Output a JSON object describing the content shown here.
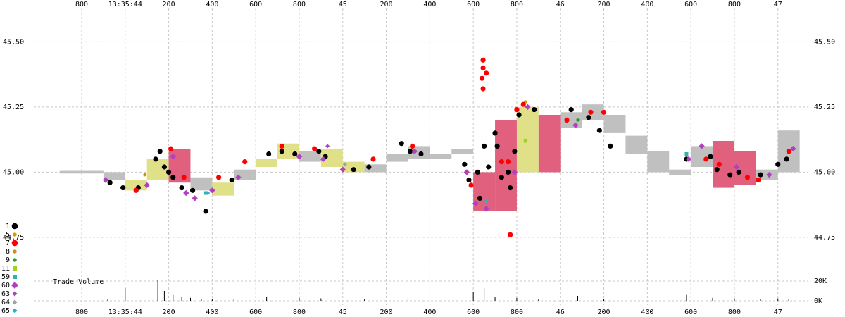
{
  "chart_data": {
    "type": "scatter",
    "xlim": [
      43.58,
      47.14
    ],
    "xticks": [
      {
        "value": 43.8,
        "label": "800"
      },
      {
        "value": 44,
        "label": "13:35:44"
      },
      {
        "value": 44.2,
        "label": "200"
      },
      {
        "value": 44.4,
        "label": "400"
      },
      {
        "value": 44.6,
        "label": "600"
      },
      {
        "value": 44.8,
        "label": "800"
      },
      45,
      {
        "value": 45.2,
        "label": "200"
      },
      {
        "value": 45.4,
        "label": "400"
      },
      {
        "value": 45.6,
        "label": "600"
      },
      {
        "value": 45.8,
        "label": "800"
      },
      46,
      {
        "value": 46.2,
        "label": "200"
      },
      {
        "value": 46.4,
        "label": "400"
      },
      {
        "value": 46.6,
        "label": "600"
      },
      {
        "value": 46.8,
        "label": "800"
      },
      47
    ],
    "ylim": [
      44.62,
      45.62
    ],
    "yticks": [
      44.75,
      {
        "value": 45,
        "label": "45.00"
      },
      45.25,
      {
        "value": 45.5,
        "label": "45.50"
      }
    ],
    "grid": true,
    "bands": {
      "x": [
        43.7,
        43.8,
        43.9,
        44.0,
        44.1,
        44.2,
        44.3,
        44.4,
        44.5,
        44.6,
        44.7,
        44.8,
        44.9,
        45.0,
        45.1,
        45.2,
        45.3,
        45.4,
        45.5,
        45.6,
        45.7,
        45.8,
        45.9,
        46.0,
        46.1,
        46.2,
        46.3,
        46.4,
        46.5,
        46.6,
        46.7,
        46.8,
        46.9,
        47.0
      ],
      "low": [
        44.995,
        44.995,
        44.97,
        44.93,
        44.97,
        44.96,
        44.93,
        44.91,
        44.97,
        45.02,
        45.05,
        45.04,
        45.02,
        45.0,
        45.0,
        45.04,
        45.05,
        45.05,
        45.07,
        44.85,
        44.85,
        45.0,
        45.0,
        45.17,
        45.2,
        45.15,
        45.07,
        45.0,
        44.99,
        45.02,
        44.94,
        44.95,
        44.97,
        45.0
      ],
      "high": [
        45.005,
        45.005,
        45.0,
        44.97,
        45.05,
        45.09,
        44.98,
        44.96,
        45.01,
        45.05,
        45.11,
        45.08,
        45.09,
        45.04,
        45.03,
        45.07,
        45.1,
        45.07,
        45.09,
        45.0,
        45.2,
        45.25,
        45.22,
        45.23,
        45.26,
        45.22,
        45.14,
        45.08,
        45.01,
        45.1,
        45.12,
        45.08,
        45.01,
        45.16
      ],
      "colors": [
        "#c0c0c0",
        "#c0c0c0",
        "#c0c0c0",
        "#e0e088",
        "#e0e088",
        "#e0607e",
        "#c0c0c0",
        "#e0e088",
        "#c0c0c0",
        "#e0e088",
        "#e0e088",
        "#c0c0c0",
        "#e0e088",
        "#e0e088",
        "#c0c0c0",
        "#c0c0c0",
        "#c0c0c0",
        "#c0c0c0",
        "#c0c0c0",
        "#e0607e",
        "#e0607e",
        "#e0e088",
        "#e0607e",
        "#c0c0c0",
        "#c0c0c0",
        "#c0c0c0",
        "#c0c0c0",
        "#c0c0c0",
        "#c0c0c0",
        "#c0c0c0",
        "#e0607e",
        "#e0607e",
        "#c0c0c0",
        "#c0c0c0"
      ]
    },
    "series": [
      {
        "name": "1",
        "color": "#000000",
        "marker": "circle",
        "x": [
          43.93,
          43.99,
          44.06,
          44.14,
          44.16,
          44.18,
          44.2,
          44.22,
          44.26,
          44.31,
          44.37,
          44.49,
          44.66,
          44.72,
          44.78,
          44.89,
          44.92,
          45.05,
          45.12,
          45.27,
          45.31,
          45.36,
          45.56,
          45.58,
          45.62,
          45.63,
          45.65,
          45.67,
          45.7,
          45.71,
          45.73,
          45.76,
          45.77,
          45.79,
          45.81,
          45.88,
          46.05,
          46.13,
          46.18,
          46.23,
          46.58,
          46.69,
          46.72,
          46.78,
          46.82,
          46.92,
          47.0,
          47.04
        ],
        "y": [
          44.96,
          44.94,
          44.94,
          45.05,
          45.08,
          45.02,
          45.0,
          44.98,
          44.94,
          44.93,
          44.85,
          44.97,
          45.07,
          45.08,
          45.07,
          45.08,
          45.06,
          45.01,
          45.02,
          45.11,
          45.08,
          45.07,
          45.03,
          44.97,
          45.0,
          44.9,
          45.1,
          45.02,
          45.15,
          45.1,
          44.98,
          45.0,
          44.94,
          45.08,
          45.22,
          45.24,
          45.24,
          45.21,
          45.16,
          45.1,
          45.05,
          45.06,
          45.01,
          44.99,
          45.0,
          44.99,
          45.03,
          45.05
        ]
      },
      {
        "name": "5",
        "color": "#d4a000",
        "marker": "dot",
        "x": [
          45.84
        ],
        "y": [
          45.27
        ]
      },
      {
        "name": "7",
        "color": "#ff0000",
        "marker": "circle",
        "x": [
          44.05,
          44.21,
          44.27,
          44.43,
          44.55,
          44.72,
          44.87,
          45.14,
          45.32,
          45.59,
          45.64,
          45.645,
          45.645,
          45.645,
          45.66,
          45.73,
          45.76,
          45.77,
          45.8,
          45.83,
          46.03,
          46.14,
          46.2,
          46.67,
          46.73,
          46.86,
          46.91,
          47.05
        ],
        "y": [
          44.93,
          45.09,
          44.98,
          44.98,
          45.04,
          45.1,
          45.09,
          45.05,
          45.1,
          44.95,
          45.36,
          45.43,
          45.32,
          45.4,
          45.38,
          45.04,
          45.04,
          44.76,
          45.24,
          45.26,
          45.2,
          45.23,
          45.23,
          45.05,
          45.03,
          44.98,
          44.97,
          45.08
        ]
      },
      {
        "name": "8",
        "color": "#d49000",
        "marker": "dot",
        "x": [
          44.09
        ],
        "y": [
          44.99
        ]
      },
      {
        "name": "9",
        "color": "#20a020",
        "marker": "dot",
        "x": [
          46.08
        ],
        "y": [
          45.2
        ]
      },
      {
        "name": "11",
        "color": "#a0d020",
        "marker": "square",
        "x": [
          45.84
        ],
        "y": [
          45.12
        ]
      },
      {
        "name": "59",
        "color": "#30b0b0",
        "marker": "square",
        "x": [
          44.37,
          46.58
        ],
        "y": [
          44.92,
          45.07
        ]
      },
      {
        "name": "60",
        "color": "#b040c0",
        "marker": "diamond",
        "x": [
          43.91,
          44.1,
          44.22,
          44.28,
          44.32,
          44.4,
          44.52,
          44.8,
          44.91,
          45.0,
          45.33,
          45.57,
          45.61,
          45.66,
          45.79,
          45.85,
          46.07,
          46.59,
          46.65,
          46.81,
          46.96,
          47.07
        ],
        "y": [
          44.97,
          44.95,
          45.06,
          44.92,
          44.9,
          44.93,
          44.98,
          45.06,
          45.05,
          45.01,
          45.08,
          45.0,
          44.88,
          44.86,
          45.0,
          45.25,
          45.18,
          45.05,
          45.1,
          45.02,
          44.99,
          45.09
        ]
      },
      {
        "name": "63",
        "color": "#b040c0",
        "marker": "small-diamond",
        "x": [
          44.93
        ],
        "y": [
          45.1
        ]
      },
      {
        "name": "64",
        "color": "#a0a0a0",
        "marker": "small-diamond",
        "x": [
          45.01
        ],
        "y": [
          45.03
        ]
      },
      {
        "name": "65",
        "color": "#30b0c0",
        "marker": "small-diamond",
        "x": [
          44.38,
          45.66
        ],
        "y": [
          44.92,
          44.89
        ]
      }
    ],
    "volume": {
      "label": "Trade Volume",
      "color": "#000000",
      "ylim": [
        0,
        25000
      ],
      "yticks": [
        {
          "value": 0,
          "label": "0K"
        },
        {
          "value": 20000,
          "label": "20K"
        }
      ],
      "x": [
        43.92,
        44.0,
        44.15,
        44.18,
        44.22,
        44.26,
        44.3,
        44.35,
        44.4,
        44.5,
        44.65,
        44.8,
        44.9,
        45.1,
        45.3,
        45.6,
        45.65,
        45.7,
        45.8,
        45.9,
        46.08,
        46.2,
        46.58,
        46.7,
        46.8,
        46.92,
        47.0,
        47.05
      ],
      "values": [
        2000,
        13000,
        21000,
        10000,
        6000,
        4000,
        3000,
        2000,
        1500,
        2000,
        4000,
        3000,
        2500,
        2000,
        3500,
        9000,
        13000,
        4000,
        3000,
        2000,
        5000,
        1500,
        6000,
        3000,
        2500,
        2000,
        2500,
        1500
      ]
    }
  }
}
